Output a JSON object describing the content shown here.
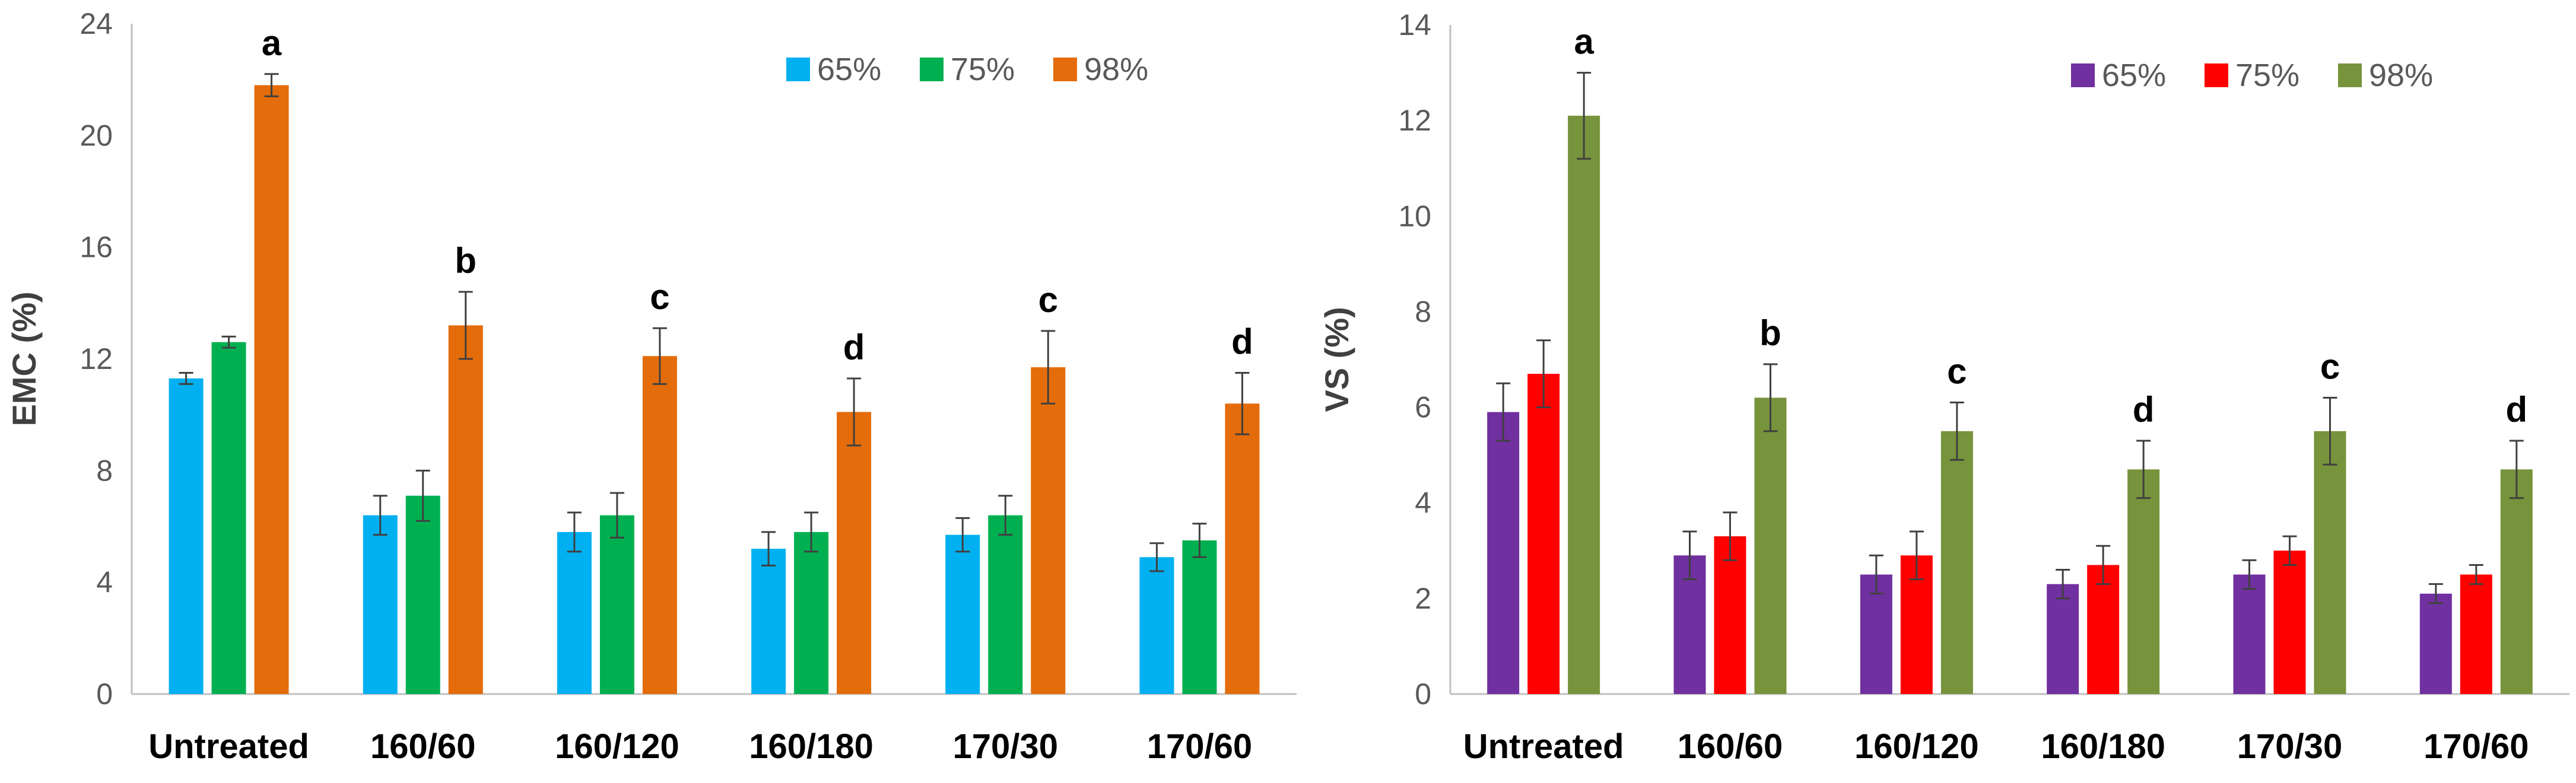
{
  "chart_data": [
    {
      "type": "bar",
      "title": "",
      "xlabel": "",
      "ylabel": "EMC (%)",
      "ylim": [
        0,
        24
      ],
      "yticks": [
        0,
        4,
        8,
        12,
        16,
        20,
        24
      ],
      "ytick_labels": [
        "0",
        "4",
        "8",
        "12",
        "16",
        "20",
        "24"
      ],
      "grid": false,
      "legend_position": "top-right",
      "categories": [
        "Untreated",
        "160/60",
        "160/120",
        "160/180",
        "170/30",
        "170/60"
      ],
      "series": [
        {
          "name": "65%",
          "color": "#00B0F0",
          "values": [
            11.3,
            6.4,
            5.8,
            5.2,
            5.7,
            4.9
          ],
          "errors": [
            0.2,
            0.7,
            0.7,
            0.6,
            0.6,
            0.5
          ]
        },
        {
          "name": "75%",
          "color": "#00B050",
          "values": [
            12.6,
            7.1,
            6.4,
            5.8,
            6.4,
            5.5
          ],
          "errors": [
            0.2,
            0.9,
            0.8,
            0.7,
            0.7,
            0.6
          ]
        },
        {
          "name": "98%",
          "color": "#E46C0A",
          "values": [
            21.8,
            13.2,
            12.1,
            10.1,
            11.7,
            10.4
          ],
          "errors": [
            0.4,
            1.2,
            1.0,
            1.2,
            1.3,
            1.1
          ]
        }
      ],
      "annotations": [
        "a",
        "b",
        "c",
        "d",
        "c",
        "d"
      ]
    },
    {
      "type": "bar",
      "title": "",
      "xlabel": "",
      "ylabel": "VS (%)",
      "ylim": [
        0,
        14
      ],
      "yticks": [
        0,
        2,
        4,
        6,
        8,
        10,
        12,
        14
      ],
      "ytick_labels": [
        "0",
        "2",
        "4",
        "6",
        "8",
        "10",
        "12",
        "14"
      ],
      "grid": false,
      "legend_position": "top-right",
      "categories": [
        "Untreated",
        "160/60",
        "160/120",
        "160/180",
        "170/30",
        "170/60"
      ],
      "series": [
        {
          "name": "65%",
          "color": "#7030A0",
          "values": [
            5.9,
            2.9,
            2.5,
            2.3,
            2.5,
            2.1
          ],
          "errors": [
            0.6,
            0.5,
            0.4,
            0.3,
            0.3,
            0.2
          ]
        },
        {
          "name": "75%",
          "color": "#FF0000",
          "values": [
            6.7,
            3.3,
            2.9,
            2.7,
            3.0,
            2.5
          ],
          "errors": [
            0.7,
            0.5,
            0.5,
            0.4,
            0.3,
            0.2
          ]
        },
        {
          "name": "98%",
          "color": "#77933C",
          "values": [
            12.1,
            6.2,
            5.5,
            4.7,
            5.5,
            4.7
          ],
          "errors": [
            0.9,
            0.7,
            0.6,
            0.6,
            0.7,
            0.6
          ]
        }
      ],
      "annotations": [
        "a",
        "b",
        "c",
        "d",
        "c",
        "d"
      ]
    }
  ]
}
